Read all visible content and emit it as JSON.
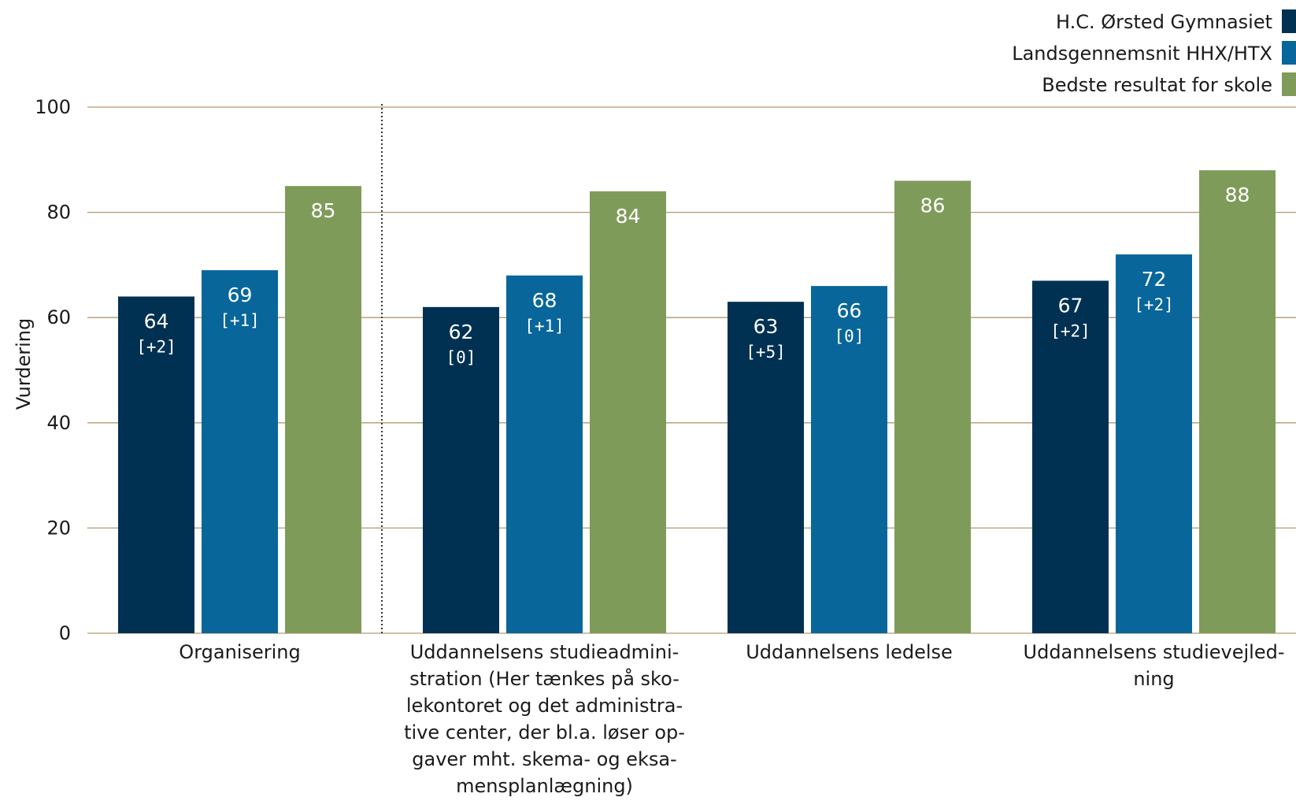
{
  "chart_data": {
    "type": "bar",
    "title": "",
    "xlabel": "",
    "ylabel": "Vurdering",
    "ylim": [
      0,
      100
    ],
    "yticks": [
      0,
      20,
      40,
      60,
      80,
      100
    ],
    "grid": true,
    "legend_position": "top-right",
    "categories": [
      [
        "Organisering"
      ],
      [
        "Uddannelsens studieadmini-",
        "stration (Her tænkes på sko-",
        "lekontoret og det administra-",
        "tive center, der bl.a. løser op-",
        "gaver mht. skema- og eksa-",
        "mensplanlægning)"
      ],
      [
        "Uddannelsens ledelse"
      ],
      [
        "Uddannelsens studievejled-",
        "ning"
      ]
    ],
    "series": [
      {
        "name": "H.C. Ørsted Gymnasiet",
        "color": "#003152",
        "values": [
          64,
          62,
          63,
          67
        ],
        "changes": [
          "[+2]",
          "[0]",
          "[+5]",
          "[+2]"
        ]
      },
      {
        "name": "Landsgennemsnit HHX/HTX",
        "color": "#08669a",
        "values": [
          69,
          68,
          66,
          72
        ],
        "changes": [
          "[+1]",
          "[+1]",
          "[0]",
          "[+2]"
        ]
      },
      {
        "name": "Bedste resultat for skole",
        "color": "#7f9b5a",
        "values": [
          85,
          84,
          86,
          88
        ],
        "changes": [
          "",
          "",
          "",
          ""
        ]
      }
    ],
    "separator_after_category": 0
  }
}
